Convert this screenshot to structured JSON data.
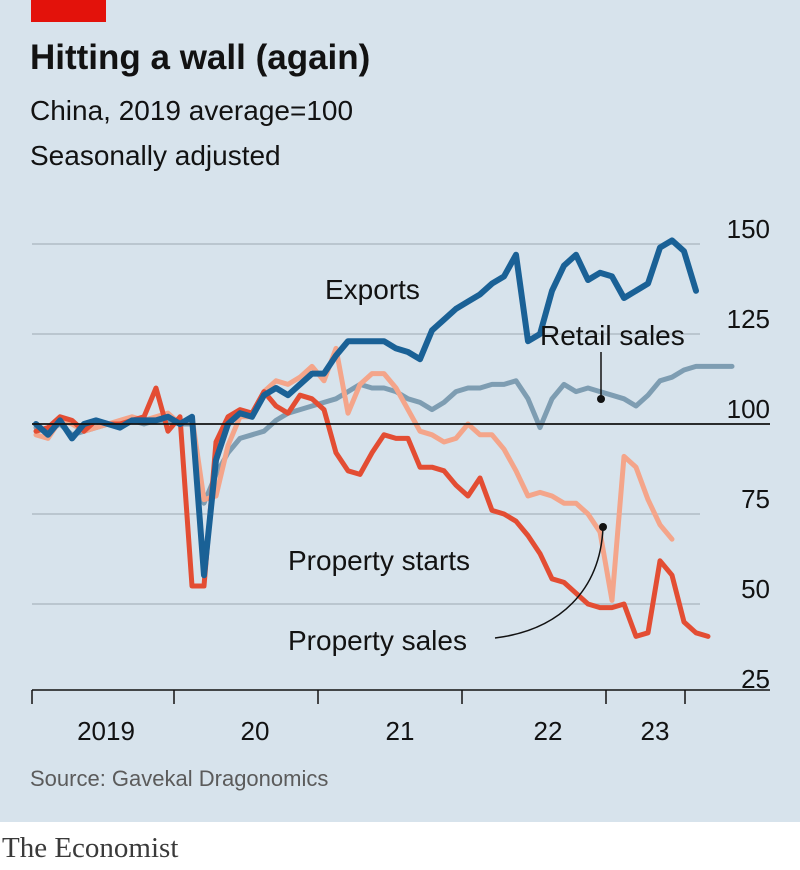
{
  "header": {
    "title": "Hitting a wall (again)",
    "subtitle": "China, 2019 average=100",
    "note": "Seasonally adjusted"
  },
  "footer": {
    "source": "Source: Gavekal Dragonomics",
    "brand": "The Economist"
  },
  "colors": {
    "background": "#d7e3ec",
    "exports": "#1a6196",
    "retail_sales": "#7e9db2",
    "property_starts": "#e34d33",
    "property_sales": "#f4a58a",
    "baseline": "#121212",
    "grid": "#b0bcc5",
    "brand_tag": "#e3120b"
  },
  "chart_data": {
    "type": "line",
    "title": "Hitting a wall (again)",
    "subtitle": "China, 2019 average=100",
    "note": "Seasonally adjusted",
    "x_start": "2019-01",
    "x_unit": "month",
    "x_ticks": [
      "2019",
      "20",
      "21",
      "22",
      "23"
    ],
    "ylim": [
      25,
      150
    ],
    "yticks": [
      25,
      50,
      75,
      100,
      125,
      150
    ],
    "baseline": 100,
    "grid": true,
    "series": [
      {
        "name": "Exports",
        "color": "#1a6196",
        "start": "2019-01",
        "values": [
          100,
          97,
          101,
          96,
          100,
          101,
          100,
          99,
          101,
          101,
          101,
          102,
          100,
          102,
          58,
          90,
          100,
          103,
          102,
          108,
          110,
          108,
          111,
          114,
          114,
          119,
          123,
          123,
          123,
          123,
          121,
          120,
          118,
          126,
          129,
          132,
          134,
          136,
          139,
          141,
          147,
          123,
          125,
          137,
          144,
          147,
          140,
          142,
          141,
          135,
          137,
          139,
          149,
          151,
          148,
          137
        ]
      },
      {
        "name": "Retail sales",
        "color": "#7e9db2",
        "start": "2019-01",
        "values": [
          99,
          98,
          100,
          97,
          98,
          99,
          100,
          100,
          101,
          100,
          101,
          101,
          100,
          100,
          78,
          86,
          92,
          96,
          97,
          98,
          101,
          103,
          104,
          105,
          106,
          107,
          109,
          111,
          110,
          110,
          109,
          107,
          106,
          104,
          106,
          109,
          110,
          110,
          111,
          111,
          112,
          107,
          99,
          107,
          111,
          109,
          110,
          109,
          108,
          107,
          105,
          108,
          112,
          113,
          115,
          116,
          116,
          116,
          116
        ]
      },
      {
        "name": "Property starts",
        "color": "#e34d33",
        "start": "2019-01",
        "values": [
          98,
          99,
          102,
          101,
          98,
          101,
          100,
          100,
          101,
          102,
          110,
          98,
          102,
          55,
          55,
          95,
          102,
          104,
          103,
          109,
          105,
          103,
          108,
          107,
          104,
          92,
          87,
          86,
          92,
          97,
          96,
          96,
          88,
          88,
          87,
          83,
          80,
          85,
          76,
          75,
          73,
          69,
          64,
          57,
          56,
          53,
          50,
          49,
          49,
          50,
          41,
          42,
          62,
          58,
          45,
          42,
          41
        ]
      },
      {
        "name": "Property sales",
        "color": "#f4a58a",
        "start": "2019-01",
        "values": [
          97,
          96,
          101,
          100,
          98,
          99,
          100,
          101,
          102,
          101,
          102,
          103,
          100,
          102,
          79,
          80,
          94,
          102,
          102,
          109,
          112,
          111,
          113,
          116,
          112,
          121,
          103,
          111,
          114,
          114,
          110,
          104,
          98,
          97,
          95,
          96,
          100,
          97,
          97,
          93,
          87,
          80,
          81,
          80,
          78,
          78,
          75,
          70,
          51,
          91,
          88,
          79,
          72,
          68
        ]
      }
    ]
  }
}
